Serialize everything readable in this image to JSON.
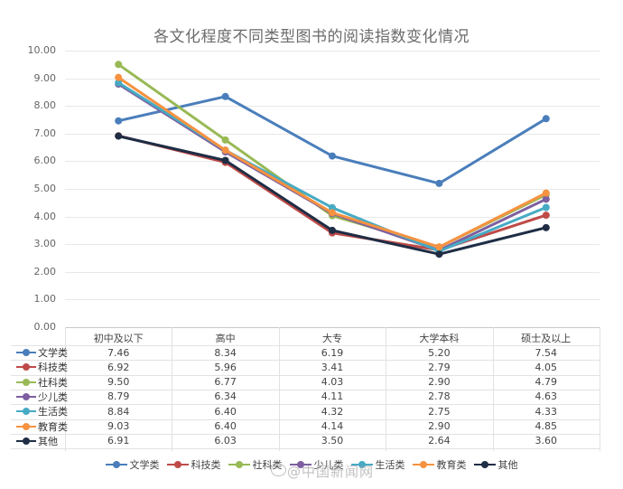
{
  "chart_data": {
    "type": "line",
    "title": "各文化程度不同类型图书的阅读指数变化情况",
    "categories": [
      "初中及以下",
      "高中",
      "大专",
      "大学本科",
      "硕士及以上"
    ],
    "ylim": [
      0,
      10
    ],
    "yticks": [
      "0.00",
      "1.00",
      "2.00",
      "3.00",
      "4.00",
      "5.00",
      "6.00",
      "7.00",
      "8.00",
      "9.00",
      "10.00"
    ],
    "grid": true,
    "legend_position": "bottom",
    "data_table": true,
    "series": [
      {
        "name": "文学类",
        "color": "#4a7ebb",
        "values": [
          7.46,
          8.34,
          6.19,
          5.2,
          7.54
        ],
        "labels": [
          "7.46",
          "8.34",
          "6.19",
          "5.20",
          "7.54"
        ]
      },
      {
        "name": "科技类",
        "color": "#be4b48",
        "values": [
          6.92,
          5.96,
          3.41,
          2.79,
          4.05
        ],
        "labels": [
          "6.92",
          "5.96",
          "3.41",
          "2.79",
          "4.05"
        ]
      },
      {
        "name": "社科类",
        "color": "#98b954",
        "values": [
          9.5,
          6.77,
          4.03,
          2.9,
          4.79
        ],
        "labels": [
          "9.50",
          "6.77",
          "4.03",
          "2.90",
          "4.79"
        ]
      },
      {
        "name": "少儿类",
        "color": "#7d5fa0",
        "values": [
          8.79,
          6.34,
          4.11,
          2.78,
          4.63
        ],
        "labels": [
          "8.79",
          "6.34",
          "4.11",
          "2.78",
          "4.63"
        ]
      },
      {
        "name": "生活类",
        "color": "#46aac4",
        "values": [
          8.84,
          6.4,
          4.32,
          2.75,
          4.33
        ],
        "labels": [
          "8.84",
          "6.40",
          "4.32",
          "2.75",
          "4.33"
        ]
      },
      {
        "name": "教育类",
        "color": "#f69240",
        "values": [
          9.03,
          6.4,
          4.14,
          2.9,
          4.85
        ],
        "labels": [
          "9.03",
          "6.40",
          "4.14",
          "2.90",
          "4.85"
        ]
      },
      {
        "name": "其他",
        "color": "#1f2d45",
        "values": [
          6.91,
          6.03,
          3.5,
          2.64,
          3.6
        ],
        "labels": [
          "6.91",
          "6.03",
          "3.50",
          "2.64",
          "3.60"
        ]
      }
    ]
  },
  "watermark": {
    "text": "@中国新闻网",
    "icon": "weibo-icon"
  }
}
